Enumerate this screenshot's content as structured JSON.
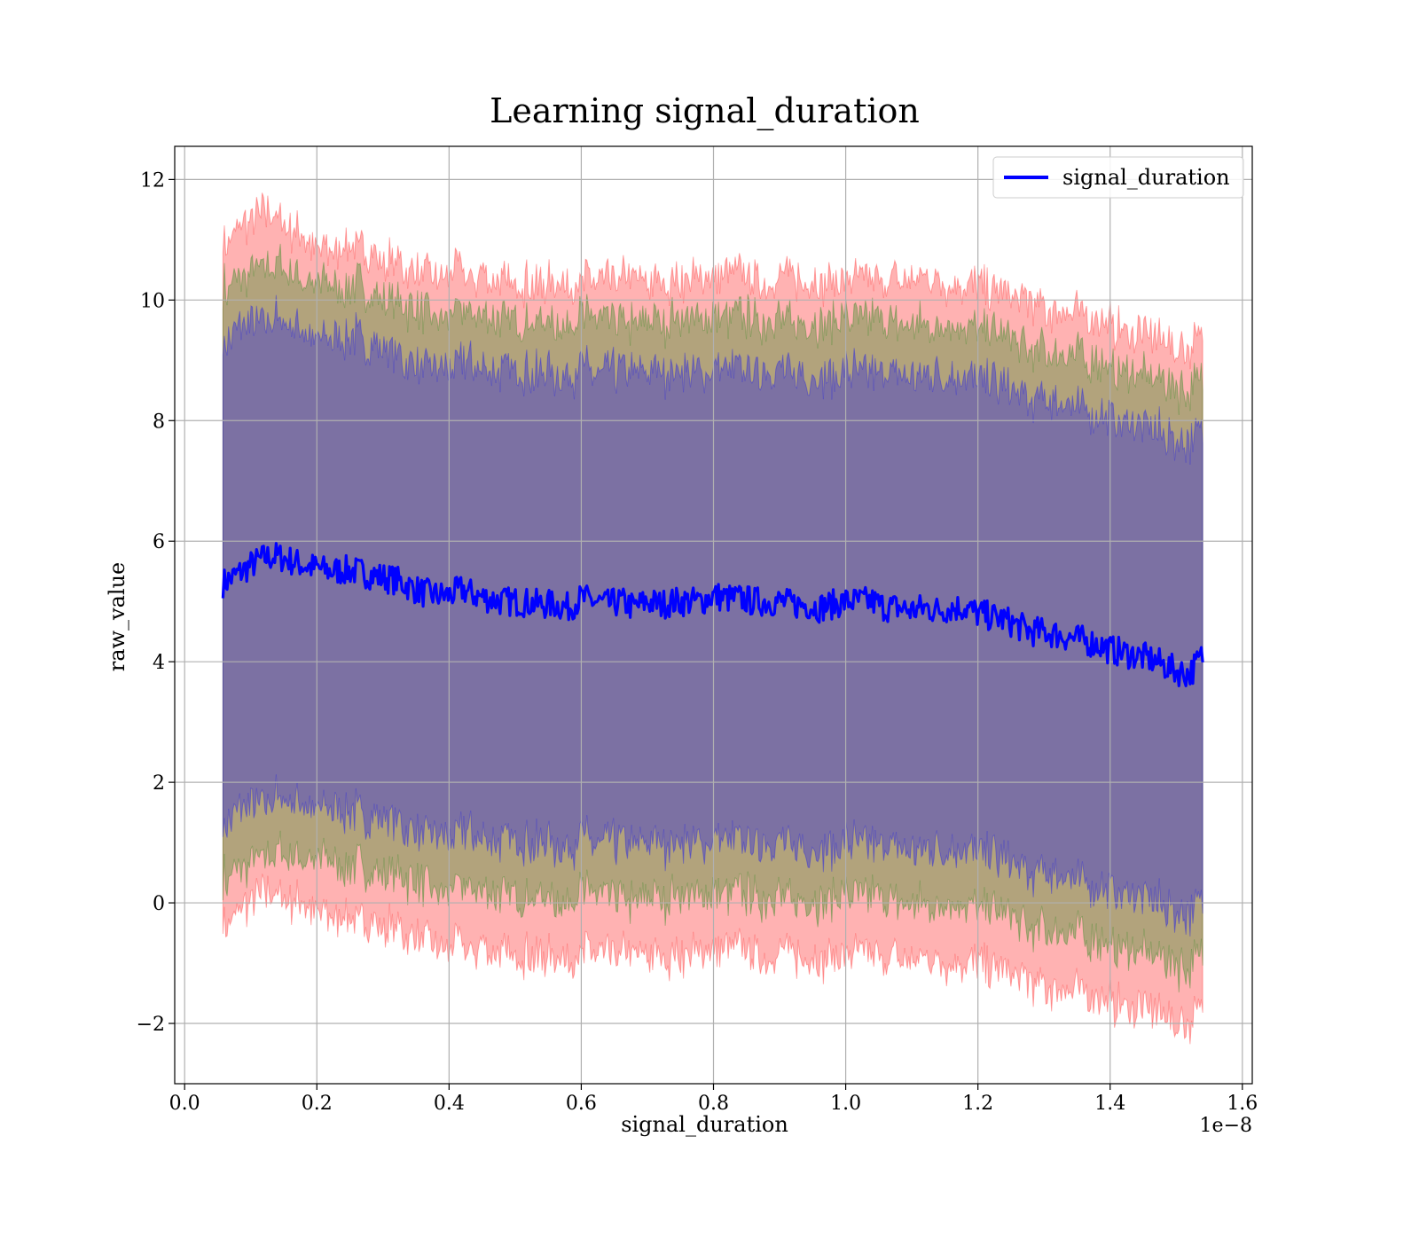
{
  "chart_data": {
    "type": "line",
    "title": "Learning signal_duration",
    "xlabel": "signal_duration",
    "ylabel": "raw_value",
    "x_offset_label": "1e−8",
    "xlim": [
      -0.015,
      1.615
    ],
    "ylim": [
      -3.0,
      12.55
    ],
    "x_ticks": [
      0.0,
      0.2,
      0.4,
      0.6,
      0.8,
      1.0,
      1.2,
      1.4,
      1.6
    ],
    "x_tick_labels": [
      "0.0",
      "0.2",
      "0.4",
      "0.6",
      "0.8",
      "1.0",
      "1.2",
      "1.4",
      "1.6"
    ],
    "y_ticks": [
      -2,
      0,
      2,
      4,
      6,
      8,
      10,
      12
    ],
    "y_tick_labels": [
      "−2",
      "0",
      "2",
      "4",
      "6",
      "8",
      "10",
      "12"
    ],
    "grid": true,
    "legend": {
      "position": "top-right",
      "entries": [
        "signal_duration"
      ]
    },
    "x_range": [
      0.058,
      1.54
    ],
    "series": [
      {
        "name": "signal_duration",
        "color": "#0000ff",
        "x": [
          0.058,
          0.08,
          0.1,
          0.12,
          0.14,
          0.16,
          0.18,
          0.2,
          0.22,
          0.24,
          0.26,
          0.28,
          0.3,
          0.32,
          0.34,
          0.36,
          0.38,
          0.4,
          0.42,
          0.44,
          0.46,
          0.48,
          0.5,
          0.52,
          0.54,
          0.56,
          0.58,
          0.6,
          0.62,
          0.64,
          0.66,
          0.68,
          0.7,
          0.72,
          0.74,
          0.76,
          0.78,
          0.8,
          0.82,
          0.84,
          0.86,
          0.88,
          0.9,
          0.92,
          0.94,
          0.96,
          0.98,
          1.0,
          1.02,
          1.04,
          1.06,
          1.08,
          1.1,
          1.12,
          1.14,
          1.16,
          1.18,
          1.2,
          1.22,
          1.24,
          1.26,
          1.28,
          1.3,
          1.32,
          1.34,
          1.36,
          1.38,
          1.4,
          1.42,
          1.44,
          1.46,
          1.48,
          1.5,
          1.52,
          1.54
        ],
        "values": [
          5.3,
          5.45,
          5.6,
          5.72,
          5.75,
          5.68,
          5.6,
          5.55,
          5.5,
          5.52,
          5.5,
          5.45,
          5.4,
          5.35,
          5.25,
          5.15,
          5.1,
          5.1,
          5.2,
          5.1,
          5.05,
          5.0,
          5.0,
          4.98,
          4.95,
          4.95,
          4.9,
          5.05,
          5.0,
          4.95,
          5.0,
          4.9,
          5.0,
          4.95,
          5.0,
          5.0,
          5.0,
          5.1,
          5.05,
          5.05,
          5.0,
          5.0,
          5.0,
          4.95,
          4.95,
          4.9,
          4.95,
          5.0,
          5.0,
          5.0,
          4.9,
          4.9,
          4.85,
          4.9,
          4.85,
          4.9,
          4.9,
          4.8,
          4.75,
          4.7,
          4.6,
          4.5,
          4.5,
          4.45,
          4.4,
          4.35,
          4.3,
          4.2,
          4.15,
          4.1,
          4.05,
          3.95,
          3.85,
          3.8,
          4.1
        ]
      }
    ],
    "bands": [
      {
        "color": "#ff0000",
        "alpha": 0.3,
        "upper": [
          11.0,
          11.2,
          11.3,
          11.4,
          11.35,
          11.2,
          11.0,
          10.9,
          10.85,
          10.9,
          10.95,
          10.8,
          10.7,
          10.6,
          10.5,
          10.4,
          10.4,
          10.45,
          10.5,
          10.4,
          10.35,
          10.3,
          10.3,
          10.3,
          10.25,
          10.3,
          10.25,
          10.35,
          10.3,
          10.3,
          10.35,
          10.3,
          10.3,
          10.3,
          10.35,
          10.35,
          10.35,
          10.4,
          10.4,
          10.4,
          10.35,
          10.35,
          10.35,
          10.35,
          10.3,
          10.3,
          10.3,
          10.35,
          10.35,
          10.35,
          10.3,
          10.3,
          10.3,
          10.35,
          10.3,
          10.3,
          10.3,
          10.2,
          10.15,
          10.1,
          10.0,
          9.95,
          9.9,
          9.85,
          9.8,
          9.75,
          9.7,
          9.6,
          9.5,
          9.45,
          9.4,
          9.3,
          9.2,
          9.15,
          9.4
        ],
        "lower": [
          -0.3,
          -0.15,
          0.0,
          0.1,
          0.1,
          0.05,
          -0.05,
          -0.1,
          -0.2,
          -0.2,
          -0.25,
          -0.3,
          -0.35,
          -0.45,
          -0.55,
          -0.65,
          -0.7,
          -0.75,
          -0.7,
          -0.75,
          -0.8,
          -0.85,
          -0.85,
          -0.85,
          -0.9,
          -0.9,
          -0.95,
          -0.8,
          -0.85,
          -0.9,
          -0.85,
          -0.95,
          -0.85,
          -0.9,
          -0.85,
          -0.85,
          -0.85,
          -0.75,
          -0.8,
          -0.8,
          -0.85,
          -0.85,
          -0.85,
          -0.9,
          -0.9,
          -0.95,
          -0.9,
          -0.85,
          -0.85,
          -0.85,
          -0.95,
          -0.95,
          -1.0,
          -0.95,
          -1.0,
          -0.95,
          -0.95,
          -1.05,
          -1.1,
          -1.15,
          -1.25,
          -1.35,
          -1.35,
          -1.4,
          -1.45,
          -1.5,
          -1.55,
          -1.65,
          -1.7,
          -1.75,
          -1.8,
          -1.9,
          -2.0,
          -2.05,
          -1.75
        ]
      },
      {
        "color": "#008000",
        "alpha": 0.3,
        "upper": [
          10.2,
          10.35,
          10.5,
          10.6,
          10.6,
          10.5,
          10.35,
          10.25,
          10.2,
          10.25,
          10.25,
          10.15,
          10.05,
          9.95,
          9.85,
          9.75,
          9.72,
          9.75,
          9.85,
          9.75,
          9.7,
          9.65,
          9.65,
          9.63,
          9.6,
          9.62,
          9.58,
          9.7,
          9.65,
          9.62,
          9.67,
          9.6,
          9.65,
          9.62,
          9.67,
          9.67,
          9.67,
          9.75,
          9.72,
          9.72,
          9.68,
          9.68,
          9.68,
          9.65,
          9.63,
          9.6,
          9.63,
          9.67,
          9.67,
          9.67,
          9.6,
          9.6,
          9.57,
          9.62,
          9.57,
          9.6,
          9.6,
          9.5,
          9.45,
          9.4,
          9.3,
          9.22,
          9.2,
          9.15,
          9.1,
          9.05,
          9.0,
          8.9,
          8.83,
          8.78,
          8.73,
          8.63,
          8.53,
          8.48,
          8.75
        ],
        "lower": [
          0.4,
          0.55,
          0.7,
          0.8,
          0.85,
          0.8,
          0.75,
          0.7,
          0.65,
          0.65,
          0.6,
          0.55,
          0.5,
          0.45,
          0.35,
          0.25,
          0.2,
          0.2,
          0.3,
          0.2,
          0.15,
          0.1,
          0.1,
          0.08,
          0.05,
          0.05,
          0.0,
          0.15,
          0.1,
          0.05,
          0.1,
          0.0,
          0.1,
          0.05,
          0.1,
          0.1,
          0.1,
          0.2,
          0.15,
          0.15,
          0.1,
          0.1,
          0.1,
          0.05,
          0.05,
          0.0,
          0.05,
          0.1,
          0.1,
          0.1,
          0.0,
          0.0,
          -0.05,
          0.0,
          -0.05,
          0.0,
          0.0,
          -0.1,
          -0.15,
          -0.2,
          -0.3,
          -0.4,
          -0.4,
          -0.45,
          -0.5,
          -0.55,
          -0.6,
          -0.7,
          -0.75,
          -0.8,
          -0.85,
          -0.95,
          -1.05,
          -1.1,
          -0.8
        ]
      },
      {
        "color": "#0000ff",
        "alpha": 0.3,
        "upper": [
          9.3,
          9.45,
          9.6,
          9.7,
          9.7,
          9.6,
          9.5,
          9.4,
          9.35,
          9.4,
          9.4,
          9.3,
          9.2,
          9.1,
          9.0,
          8.9,
          8.85,
          8.9,
          9.0,
          8.9,
          8.85,
          8.8,
          8.8,
          8.78,
          8.75,
          8.77,
          8.73,
          8.85,
          8.8,
          8.77,
          8.82,
          8.75,
          8.8,
          8.77,
          8.82,
          8.82,
          8.82,
          8.9,
          8.87,
          8.87,
          8.83,
          8.83,
          8.83,
          8.8,
          8.78,
          8.75,
          8.78,
          8.82,
          8.82,
          8.82,
          8.75,
          8.75,
          8.72,
          8.77,
          8.72,
          8.75,
          8.75,
          8.65,
          8.6,
          8.55,
          8.45,
          8.37,
          8.35,
          8.3,
          8.25,
          8.2,
          8.15,
          8.05,
          7.98,
          7.93,
          7.88,
          7.78,
          7.68,
          7.63,
          7.9
        ],
        "lower": [
          1.3,
          1.45,
          1.6,
          1.7,
          1.75,
          1.7,
          1.65,
          1.6,
          1.55,
          1.55,
          1.5,
          1.45,
          1.4,
          1.35,
          1.25,
          1.15,
          1.1,
          1.1,
          1.2,
          1.1,
          1.05,
          1.0,
          1.0,
          0.98,
          0.95,
          0.95,
          0.9,
          1.05,
          1.0,
          0.95,
          1.0,
          0.9,
          1.0,
          0.95,
          1.0,
          1.0,
          1.0,
          1.1,
          1.05,
          1.05,
          1.0,
          1.0,
          1.0,
          0.95,
          0.95,
          0.9,
          0.95,
          1.0,
          1.0,
          1.0,
          0.9,
          0.9,
          0.85,
          0.9,
          0.85,
          0.9,
          0.9,
          0.8,
          0.75,
          0.7,
          0.6,
          0.5,
          0.5,
          0.45,
          0.4,
          0.35,
          0.3,
          0.2,
          0.15,
          0.1,
          0.05,
          -0.05,
          -0.15,
          -0.2,
          0.1
        ]
      }
    ]
  }
}
